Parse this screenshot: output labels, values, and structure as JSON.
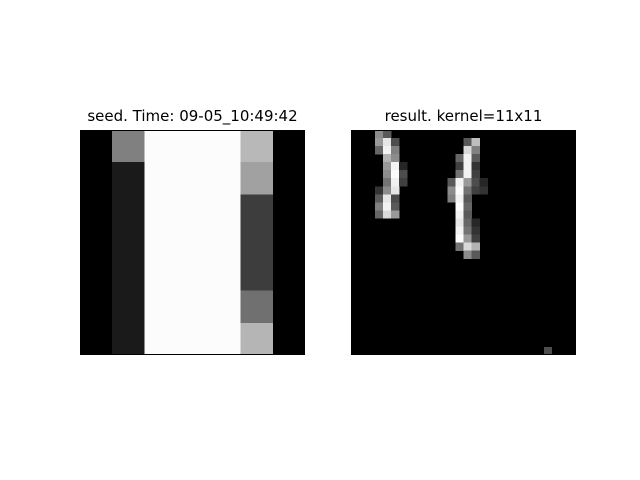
{
  "chart_data": [
    {
      "type": "heatmap",
      "title": "seed. Time: 09-05_10:49:42",
      "colormap": "gray",
      "value_range": [
        0,
        1
      ],
      "grid": false,
      "rows": 7,
      "cols": 7,
      "matrix": [
        [
          0,
          0.5,
          0.99,
          0.99,
          0.99,
          0.72,
          0
        ],
        [
          0,
          0.1,
          0.99,
          0.99,
          0.99,
          0.63,
          0
        ],
        [
          0,
          0.1,
          0.99,
          0.99,
          0.99,
          0.24,
          0
        ],
        [
          0,
          0.1,
          0.99,
          0.99,
          0.99,
          0.24,
          0
        ],
        [
          0,
          0.1,
          0.99,
          0.99,
          0.99,
          0.24,
          0
        ],
        [
          0,
          0.1,
          0.99,
          0.99,
          0.99,
          0.44,
          0
        ],
        [
          0,
          0.1,
          0.99,
          0.99,
          0.99,
          0.71,
          0
        ]
      ]
    },
    {
      "type": "heatmap",
      "title": "result. kernel=11x11",
      "colormap": "gray",
      "value_range": [
        0,
        1
      ],
      "grid": false,
      "rows": 28,
      "cols": 28,
      "cells": [
        {
          "r": 0,
          "c": 3,
          "v": 0.55
        },
        {
          "r": 0,
          "c": 4,
          "v": 0.35
        },
        {
          "r": 1,
          "c": 3,
          "v": 0.6
        },
        {
          "r": 1,
          "c": 4,
          "v": 0.9
        },
        {
          "r": 1,
          "c": 5,
          "v": 0.3
        },
        {
          "r": 1,
          "c": 14,
          "v": 0.35
        },
        {
          "r": 1,
          "c": 15,
          "v": 0.75
        },
        {
          "r": 2,
          "c": 3,
          "v": 0.4
        },
        {
          "r": 2,
          "c": 4,
          "v": 0.95
        },
        {
          "r": 2,
          "c": 5,
          "v": 0.5
        },
        {
          "r": 2,
          "c": 14,
          "v": 0.85
        },
        {
          "r": 2,
          "c": 15,
          "v": 0.5
        },
        {
          "r": 3,
          "c": 4,
          "v": 0.7
        },
        {
          "r": 3,
          "c": 5,
          "v": 0.55
        },
        {
          "r": 3,
          "c": 13,
          "v": 0.4
        },
        {
          "r": 3,
          "c": 14,
          "v": 0.95
        },
        {
          "r": 3,
          "c": 15,
          "v": 0.35
        },
        {
          "r": 4,
          "c": 4,
          "v": 0.6
        },
        {
          "r": 4,
          "c": 5,
          "v": 0.95
        },
        {
          "r": 4,
          "c": 6,
          "v": 0.15
        },
        {
          "r": 4,
          "c": 13,
          "v": 0.25
        },
        {
          "r": 4,
          "c": 14,
          "v": 0.95
        },
        {
          "r": 4,
          "c": 15,
          "v": 0.2
        },
        {
          "r": 5,
          "c": 4,
          "v": 0.55
        },
        {
          "r": 5,
          "c": 5,
          "v": 0.99
        },
        {
          "r": 5,
          "c": 6,
          "v": 0.3
        },
        {
          "r": 5,
          "c": 13,
          "v": 0.45
        },
        {
          "r": 5,
          "c": 14,
          "v": 0.95
        },
        {
          "r": 5,
          "c": 15,
          "v": 0.25
        },
        {
          "r": 6,
          "c": 4,
          "v": 0.45
        },
        {
          "r": 6,
          "c": 5,
          "v": 0.95
        },
        {
          "r": 6,
          "c": 6,
          "v": 0.25
        },
        {
          "r": 6,
          "c": 12,
          "v": 0.35
        },
        {
          "r": 6,
          "c": 13,
          "v": 0.95
        },
        {
          "r": 6,
          "c": 14,
          "v": 0.6
        },
        {
          "r": 6,
          "c": 15,
          "v": 0.3
        },
        {
          "r": 6,
          "c": 16,
          "v": 0.15
        },
        {
          "r": 7,
          "c": 3,
          "v": 0.2
        },
        {
          "r": 7,
          "c": 4,
          "v": 0.55
        },
        {
          "r": 7,
          "c": 5,
          "v": 0.9
        },
        {
          "r": 7,
          "c": 12,
          "v": 0.55
        },
        {
          "r": 7,
          "c": 13,
          "v": 0.99
        },
        {
          "r": 7,
          "c": 14,
          "v": 0.45
        },
        {
          "r": 7,
          "c": 15,
          "v": 0.25
        },
        {
          "r": 7,
          "c": 16,
          "v": 0.2
        },
        {
          "r": 8,
          "c": 3,
          "v": 0.35
        },
        {
          "r": 8,
          "c": 4,
          "v": 0.9
        },
        {
          "r": 8,
          "c": 5,
          "v": 0.3
        },
        {
          "r": 8,
          "c": 12,
          "v": 0.5
        },
        {
          "r": 8,
          "c": 13,
          "v": 0.95
        },
        {
          "r": 8,
          "c": 14,
          "v": 0.35
        },
        {
          "r": 9,
          "c": 3,
          "v": 0.5
        },
        {
          "r": 9,
          "c": 4,
          "v": 0.95
        },
        {
          "r": 9,
          "c": 5,
          "v": 0.35
        },
        {
          "r": 9,
          "c": 13,
          "v": 0.99
        },
        {
          "r": 9,
          "c": 14,
          "v": 0.4
        },
        {
          "r": 10,
          "c": 3,
          "v": 0.4
        },
        {
          "r": 10,
          "c": 4,
          "v": 0.85
        },
        {
          "r": 10,
          "c": 5,
          "v": 0.6
        },
        {
          "r": 10,
          "c": 13,
          "v": 0.95
        },
        {
          "r": 10,
          "c": 14,
          "v": 0.35
        },
        {
          "r": 11,
          "c": 13,
          "v": 0.9
        },
        {
          "r": 11,
          "c": 14,
          "v": 0.4
        },
        {
          "r": 11,
          "c": 15,
          "v": 0.15
        },
        {
          "r": 12,
          "c": 13,
          "v": 0.95
        },
        {
          "r": 12,
          "c": 14,
          "v": 0.45
        },
        {
          "r": 12,
          "c": 15,
          "v": 0.2
        },
        {
          "r": 13,
          "c": 13,
          "v": 0.99
        },
        {
          "r": 13,
          "c": 14,
          "v": 0.6
        },
        {
          "r": 13,
          "c": 15,
          "v": 0.25
        },
        {
          "r": 14,
          "c": 13,
          "v": 0.45
        },
        {
          "r": 14,
          "c": 14,
          "v": 0.85
        },
        {
          "r": 14,
          "c": 15,
          "v": 0.7
        },
        {
          "r": 15,
          "c": 14,
          "v": 0.55
        },
        {
          "r": 15,
          "c": 15,
          "v": 0.35
        },
        {
          "r": 27,
          "c": 24,
          "v": 0.3
        }
      ]
    }
  ]
}
